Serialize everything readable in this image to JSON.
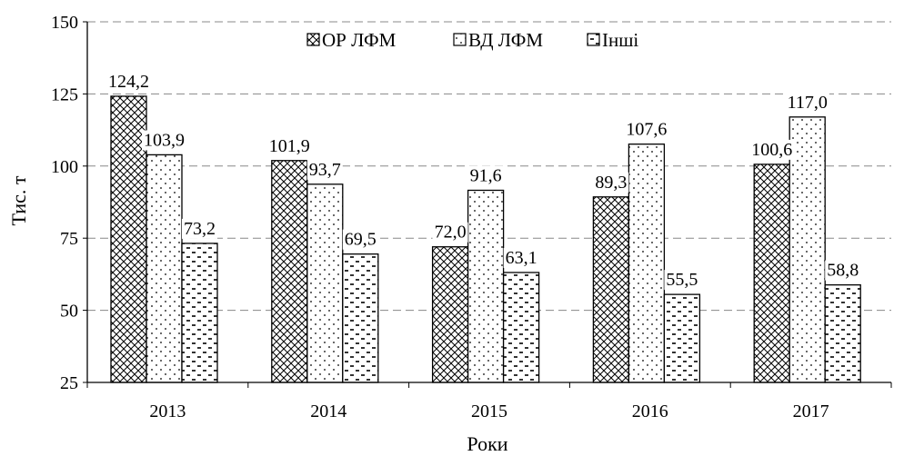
{
  "chart_data": {
    "type": "bar",
    "categories": [
      "2013",
      "2014",
      "2015",
      "2016",
      "2017"
    ],
    "series": [
      {
        "name": "ОР ЛФМ",
        "values": [
          124.2,
          101.9,
          72.0,
          89.3,
          100.6
        ],
        "labels": [
          "124,2",
          "101,9",
          "72,0",
          "89,3",
          "100,6"
        ],
        "pattern": "crosshatch"
      },
      {
        "name": "ВД ЛФМ",
        "values": [
          103.9,
          93.7,
          91.6,
          107.6,
          117.0
        ],
        "labels": [
          "103,9",
          "93,7",
          "91,6",
          "107,6",
          "117,0"
        ],
        "pattern": "dots"
      },
      {
        "name": "Інші",
        "values": [
          73.2,
          69.5,
          63.1,
          55.5,
          58.8
        ],
        "labels": [
          "73,2",
          "69,5",
          "63,1",
          "55,5",
          "58,8"
        ],
        "pattern": "dashes"
      }
    ],
    "xlabel": "Роки",
    "ylabel": "Тис. т",
    "ylim": [
      25,
      150
    ],
    "yticks": [
      25,
      50,
      75,
      100,
      125,
      150
    ],
    "grid": true,
    "legend_position": "top"
  }
}
